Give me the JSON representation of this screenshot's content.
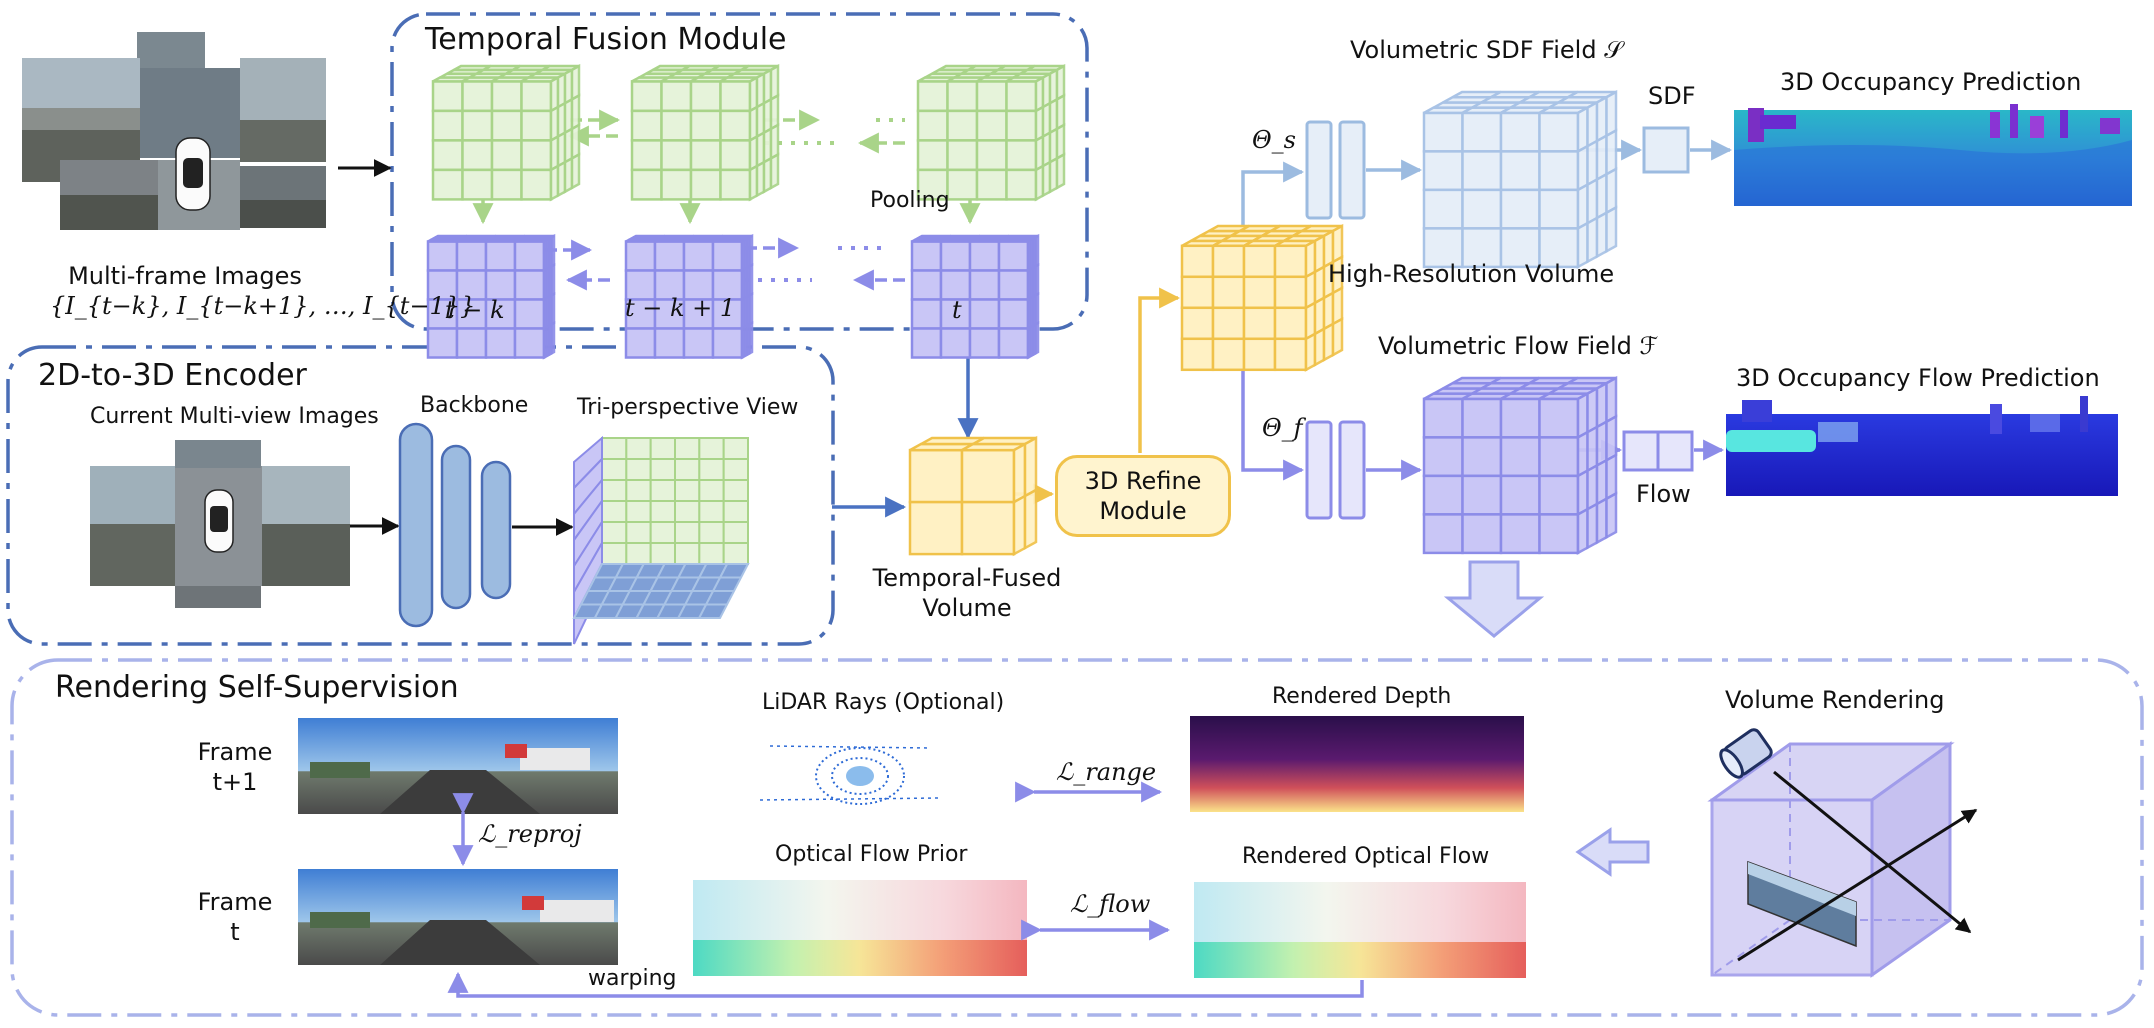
{
  "sections": {
    "temporal_fusion": "Temporal Fusion Module",
    "encoder": "2D-to-3D Encoder",
    "rendering": "Rendering Self-Supervision"
  },
  "inputs": {
    "multi_frame": "Multi-frame Images",
    "multi_frame_set": "{I_{t−k}, I_{t−k+1}, …, I_{t−1}}",
    "current_views": "Current Multi-view Images",
    "backbone": "Backbone",
    "tpv": "Tri-perspective View"
  },
  "fusion": {
    "pooling": "Pooling",
    "t1": "t − k",
    "t2": "t − k + 1",
    "t3": "t"
  },
  "volumes": {
    "temporal_fused_line1": "Temporal-Fused",
    "temporal_fused_line2": "Volume",
    "refine_line1": "3D Refine",
    "refine_line2": "Module",
    "high_res": "High-Resolution Volume",
    "sdf_field": "Volumetric SDF Field 𝒮",
    "flow_field": "Volumetric Flow Field ℱ",
    "theta_s": "Θ_s",
    "theta_f": "Θ_f",
    "sdf": "SDF",
    "flow": "Flow"
  },
  "outputs": {
    "occ": "3D Occupancy Prediction",
    "occ_flow": "3D Occupancy  Flow Prediction"
  },
  "rendering": {
    "frame_t1_line1": "Frame",
    "frame_t1_line2": "t+1",
    "frame_t_line1": "Frame",
    "frame_t_line2": "t",
    "l_reproj": "ℒ_reproj",
    "lidar": "LiDAR Rays (Optional)",
    "l_range": "ℒ_range",
    "rendered_depth": "Rendered Depth",
    "optical_prior": "Optical Flow Prior",
    "l_flow": "ℒ_flow",
    "rendered_flow": "Rendered Optical Flow",
    "volume_rendering": "Volume Rendering",
    "warping": "warping"
  },
  "colors": {
    "dash_border": "#4a6db5",
    "dash_border_light": "#a9b3ea",
    "green": "#a9d489",
    "purple": "#8c8ce8",
    "yellow": "#f0c24a",
    "blue_light": "#9cbbe0",
    "arrow_blue": "#4a72c2"
  }
}
